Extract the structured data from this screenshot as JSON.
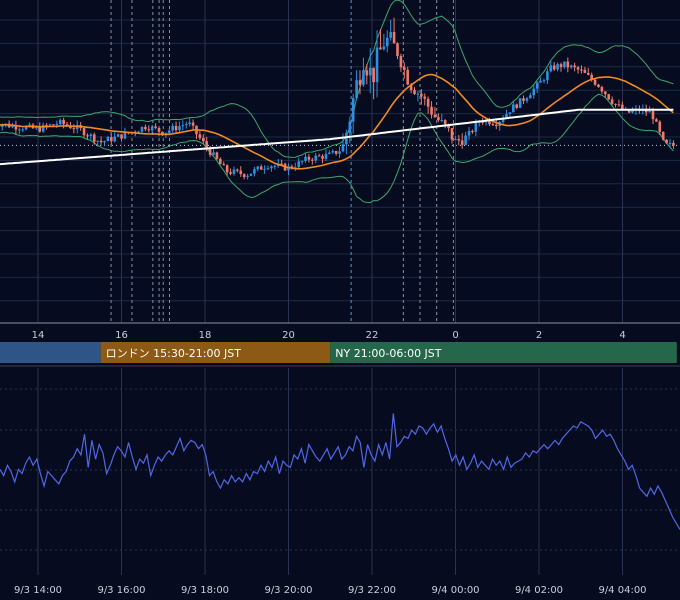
{
  "chart_data": [
    {
      "type": "candlestick",
      "title": "",
      "grid": true,
      "x_hour_ticks": [
        "14",
        "16",
        "18",
        "20",
        "22",
        "0",
        "2",
        "4"
      ],
      "y_range": [
        0,
        100
      ],
      "overlays": [
        {
          "name": "",
          "kind": "bollinger-upper",
          "color": "#3fa66a"
        },
        {
          "name": "",
          "kind": "bollinger-lower",
          "color": "#3fa66a"
        },
        {
          "name": "",
          "kind": "moving-average-short",
          "color": "#f08a24"
        },
        {
          "name": "",
          "kind": "moving-average-long",
          "color": "#ffffff"
        }
      ],
      "colors": {
        "up": "#2f8fe0",
        "down": "#f07a6a"
      },
      "dotted_reference_level": 55,
      "session_bars": [
        {
          "label": "",
          "color": "#2f5486",
          "start_hour": 12.5,
          "end_hour": 15.5
        },
        {
          "label": "ロンドン 15:30-21:00 JST",
          "color": "#8c5a15",
          "start_hour": 15.5,
          "end_hour": 21
        },
        {
          "label": "NY 21:00-06:00 JST",
          "color": "#25674a",
          "start_hour": 21,
          "end_hour": 29.3
        }
      ]
    },
    {
      "type": "line",
      "title": "",
      "grid": true,
      "x_tick_labels": [
        "9/3 14:00",
        "9/3 16:00",
        "9/3 18:00",
        "9/3 20:00",
        "9/3 22:00",
        "9/4 00:00",
        "9/4 02:00",
        "9/4 04:00"
      ],
      "series_color": "#5068e6",
      "y_range": [
        0,
        100
      ],
      "values": [
        51,
        48,
        53,
        50,
        45,
        51,
        49,
        54,
        57,
        53,
        56,
        49,
        43,
        50,
        48,
        46,
        44,
        48,
        50,
        55,
        57,
        61,
        58,
        68,
        52,
        65,
        56,
        63,
        59,
        49,
        53,
        58,
        62,
        60,
        57,
        64,
        57,
        51,
        56,
        54,
        58,
        48,
        53,
        57,
        55,
        58,
        60,
        58,
        62,
        66,
        60,
        63,
        65,
        64,
        61,
        63,
        58,
        48,
        50,
        45,
        42,
        46,
        44,
        48,
        45,
        47,
        45,
        49,
        46,
        50,
        49,
        53,
        50,
        55,
        52,
        57,
        49,
        55,
        53,
        52,
        58,
        56,
        61,
        54,
        63,
        60,
        57,
        55,
        58,
        61,
        56,
        59,
        62,
        56,
        58,
        62,
        60,
        67,
        64,
        52,
        63,
        58,
        55,
        63,
        58,
        64,
        56,
        78,
        62,
        64,
        67,
        66,
        70,
        68,
        72,
        71,
        68,
        71,
        73,
        69,
        72,
        66,
        61,
        55,
        58,
        53,
        57,
        51,
        54,
        58,
        52,
        55,
        53,
        51,
        56,
        53,
        55,
        51,
        57,
        52,
        54,
        55,
        56,
        59,
        57,
        60,
        59,
        61,
        63,
        61,
        63,
        65,
        63,
        66,
        68,
        70,
        72,
        71,
        74,
        73,
        72,
        70,
        66,
        68,
        70,
        67,
        68,
        65,
        61,
        58,
        55,
        51,
        53,
        48,
        42,
        40,
        38,
        42,
        39,
        43,
        40,
        36,
        32,
        28,
        25,
        22
      ]
    }
  ]
}
